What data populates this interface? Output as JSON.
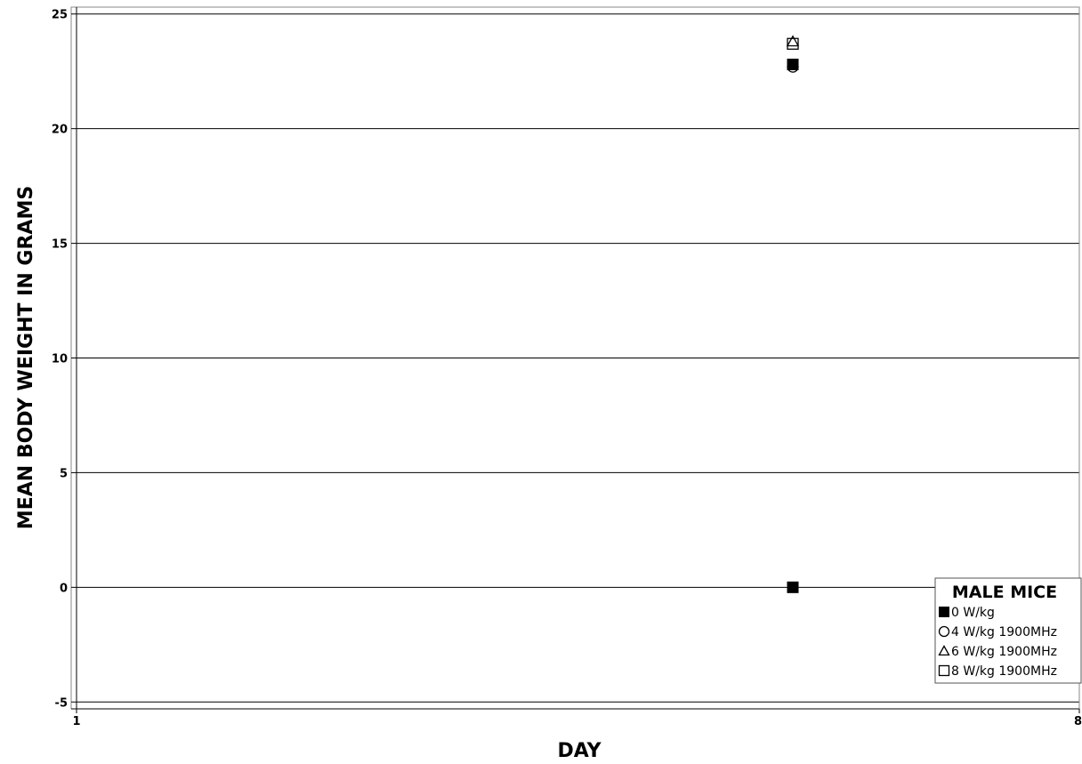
{
  "chart_data": {
    "type": "scatter",
    "xlabel": "DAY",
    "ylabel": "MEAN BODY WEIGHT IN GRAMS",
    "xlim": [
      1,
      8
    ],
    "ylim": [
      -5.3,
      25.3
    ],
    "x_ticks": [
      "1",
      "8"
    ],
    "y_ticks": [
      -5,
      0,
      5,
      10,
      15,
      20,
      25
    ],
    "grid": "horizontal",
    "legend": {
      "title": "MALE MICE",
      "placement": "bottom-right"
    },
    "series": [
      {
        "name": "0 W/kg",
        "marker": "filled-square",
        "x": [
          6,
          6
        ],
        "y": [
          0,
          22.8
        ]
      },
      {
        "name": "4 W/kg 1900MHz",
        "marker": "open-circle",
        "x": [
          6
        ],
        "y": [
          22.7
        ]
      },
      {
        "name": "6 W/kg 1900MHz",
        "marker": "open-triangle",
        "x": [
          6
        ],
        "y": [
          23.8
        ]
      },
      {
        "name": "8 W/kg 1900MHz",
        "marker": "open-square",
        "x": [
          6
        ],
        "y": [
          23.7
        ]
      }
    ]
  }
}
